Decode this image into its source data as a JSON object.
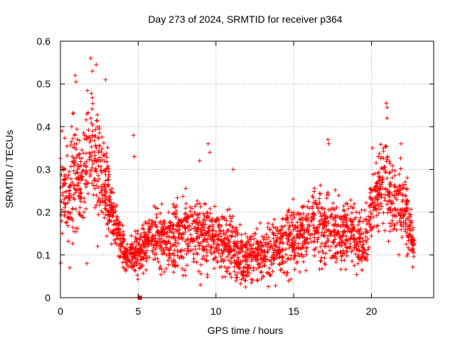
{
  "chart_data": {
    "type": "scatter",
    "title": "Day 273 of 2024, SRMTID for receiver p364",
    "xlabel": "GPS time / hours",
    "ylabel": "SRMTID / TECUs",
    "xlim": [
      0,
      24
    ],
    "ylim": [
      0,
      0.6
    ],
    "x_ticks": [
      0,
      5,
      10,
      15,
      20
    ],
    "x_tick_labels": [
      "0",
      "5",
      "10",
      "15",
      "20"
    ],
    "y_ticks": [
      0,
      0.1,
      0.2,
      0.3,
      0.4,
      0.5,
      0.6
    ],
    "y_tick_labels": [
      "0",
      "0.1",
      "0.2",
      "0.3",
      "0.4",
      "0.5",
      "0.6"
    ],
    "grid": true,
    "marker": "+",
    "color": "#ff0000",
    "zero_marker": {
      "x": 5.1,
      "y": 0.0
    },
    "envelope": {
      "x": [
        0,
        0.25,
        0.5,
        0.75,
        1.0,
        1.25,
        1.5,
        1.75,
        2.0,
        2.25,
        2.5,
        2.75,
        3.0,
        3.25,
        3.5,
        3.75,
        4.0,
        4.25,
        4.5,
        4.75,
        5.0,
        5.25,
        5.5,
        5.75,
        6.0,
        6.5,
        7.0,
        7.5,
        8.0,
        8.5,
        9.0,
        9.5,
        10.0,
        10.5,
        11.0,
        11.5,
        12.0,
        12.5,
        13.0,
        13.5,
        14.0,
        14.5,
        15.0,
        15.5,
        16.0,
        16.5,
        17.0,
        17.5,
        18.0,
        18.5,
        19.0,
        19.5,
        20.0,
        20.25,
        20.5,
        20.75,
        21.0,
        21.25,
        21.5,
        21.75,
        22.0,
        22.25,
        22.5,
        22.75
      ],
      "center": [
        0.2,
        0.25,
        0.24,
        0.3,
        0.28,
        0.24,
        0.3,
        0.36,
        0.35,
        0.33,
        0.3,
        0.28,
        0.25,
        0.2,
        0.17,
        0.15,
        0.12,
        0.1,
        0.1,
        0.1,
        0.11,
        0.12,
        0.12,
        0.13,
        0.14,
        0.14,
        0.13,
        0.15,
        0.16,
        0.15,
        0.15,
        0.14,
        0.14,
        0.13,
        0.13,
        0.1,
        0.09,
        0.1,
        0.1,
        0.11,
        0.12,
        0.13,
        0.14,
        0.15,
        0.16,
        0.17,
        0.16,
        0.15,
        0.16,
        0.15,
        0.14,
        0.12,
        0.2,
        0.23,
        0.25,
        0.28,
        0.26,
        0.23,
        0.22,
        0.22,
        0.22,
        0.2,
        0.16,
        0.12
      ],
      "spread": [
        0.1,
        0.08,
        0.09,
        0.12,
        0.1,
        0.09,
        0.11,
        0.12,
        0.12,
        0.1,
        0.1,
        0.09,
        0.08,
        0.06,
        0.05,
        0.04,
        0.035,
        0.03,
        0.03,
        0.035,
        0.05,
        0.04,
        0.04,
        0.05,
        0.05,
        0.06,
        0.06,
        0.07,
        0.07,
        0.06,
        0.06,
        0.06,
        0.06,
        0.06,
        0.06,
        0.05,
        0.05,
        0.05,
        0.05,
        0.06,
        0.06,
        0.06,
        0.06,
        0.06,
        0.06,
        0.07,
        0.07,
        0.06,
        0.06,
        0.06,
        0.06,
        0.05,
        0.07,
        0.07,
        0.07,
        0.08,
        0.08,
        0.07,
        0.07,
        0.07,
        0.07,
        0.06,
        0.05,
        0.03
      ]
    },
    "n_points": 2600,
    "extremes": [
      [
        1.95,
        0.56
      ],
      [
        2.3,
        0.545
      ],
      [
        2.05,
        0.53
      ],
      [
        0.95,
        0.52
      ],
      [
        1.0,
        0.505
      ],
      [
        2.9,
        0.51
      ],
      [
        0.1,
        0.39
      ],
      [
        4.7,
        0.38
      ],
      [
        4.75,
        0.33
      ],
      [
        9.5,
        0.36
      ],
      [
        9.6,
        0.34
      ],
      [
        11.1,
        0.3
      ],
      [
        17.2,
        0.37
      ],
      [
        17.25,
        0.36
      ],
      [
        20.05,
        0.35
      ],
      [
        20.95,
        0.455
      ],
      [
        21.0,
        0.445
      ],
      [
        21.0,
        0.42
      ],
      [
        21.9,
        0.36
      ],
      [
        8.95,
        0.32
      ],
      [
        2.4,
        0.12
      ],
      [
        1.7,
        0.08
      ],
      [
        0.6,
        0.07
      ],
      [
        9.0,
        0.03
      ],
      [
        11.9,
        0.025
      ],
      [
        13.05,
        0.05
      ],
      [
        15.4,
        0.06
      ]
    ]
  }
}
